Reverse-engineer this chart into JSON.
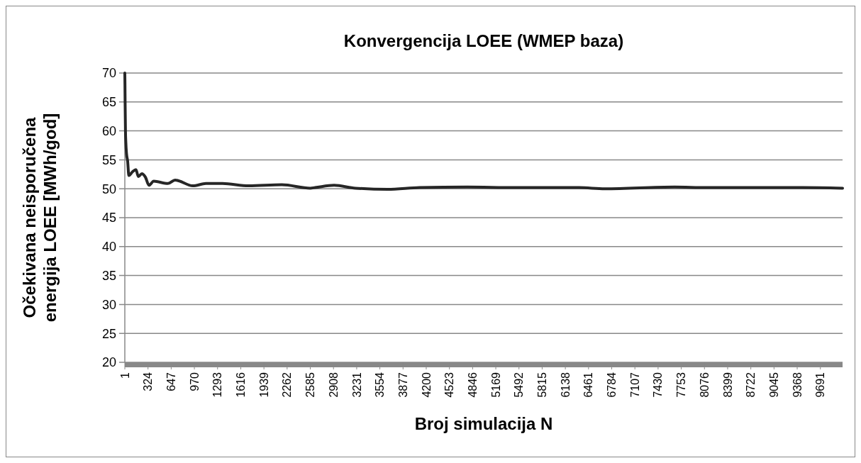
{
  "chart_data": {
    "type": "line",
    "title": "Konvergencija LOEE (WMEP baza)",
    "xlabel": "Broj simulacija N",
    "ylabel": "Očekivana neisporučena energija LOEE [MWh/god]",
    "series": [
      {
        "color": "#262626",
        "x": [
          1,
          3,
          5,
          8,
          10,
          15,
          25,
          40,
          57,
          106,
          156,
          189,
          238,
          288,
          337,
          404,
          602,
          701,
          949,
          1131,
          1362,
          1726,
          2189,
          2585,
          2652,
          2917,
          3214,
          3661,
          4107,
          4772,
          5437,
          6330,
          6687,
          7659,
          8105,
          8770,
          9444,
          10000
        ],
        "values": [
          70,
          68,
          65,
          62,
          60,
          58,
          56,
          54.8,
          52.3,
          52.9,
          53.3,
          52.1,
          52.6,
          52,
          50.6,
          51.3,
          50.9,
          51.5,
          50.5,
          50.9,
          50.9,
          50.5,
          50.7,
          50.1,
          50.2,
          50.6,
          50.1,
          49.9,
          50.2,
          50.3,
          50.2,
          50.2,
          50,
          50.3,
          50.2,
          50.2,
          50.2,
          50.1
        ]
      }
    ],
    "xlim": [
      1,
      10000
    ],
    "xticks": [
      1,
      324,
      647,
      970,
      1293,
      1616,
      1939,
      2262,
      2585,
      2908,
      3231,
      3554,
      3877,
      4200,
      4523,
      4846,
      5169,
      5492,
      5815,
      6138,
      6461,
      6784,
      7107,
      7430,
      7753,
      8076,
      8399,
      8722,
      9045,
      9368,
      9691
    ],
    "ylim": [
      20,
      70
    ],
    "yticks": [
      20,
      25,
      30,
      35,
      40,
      45,
      50,
      55,
      60,
      65,
      70
    ],
    "grid": "y",
    "marker": "none",
    "line_style": "solid"
  }
}
